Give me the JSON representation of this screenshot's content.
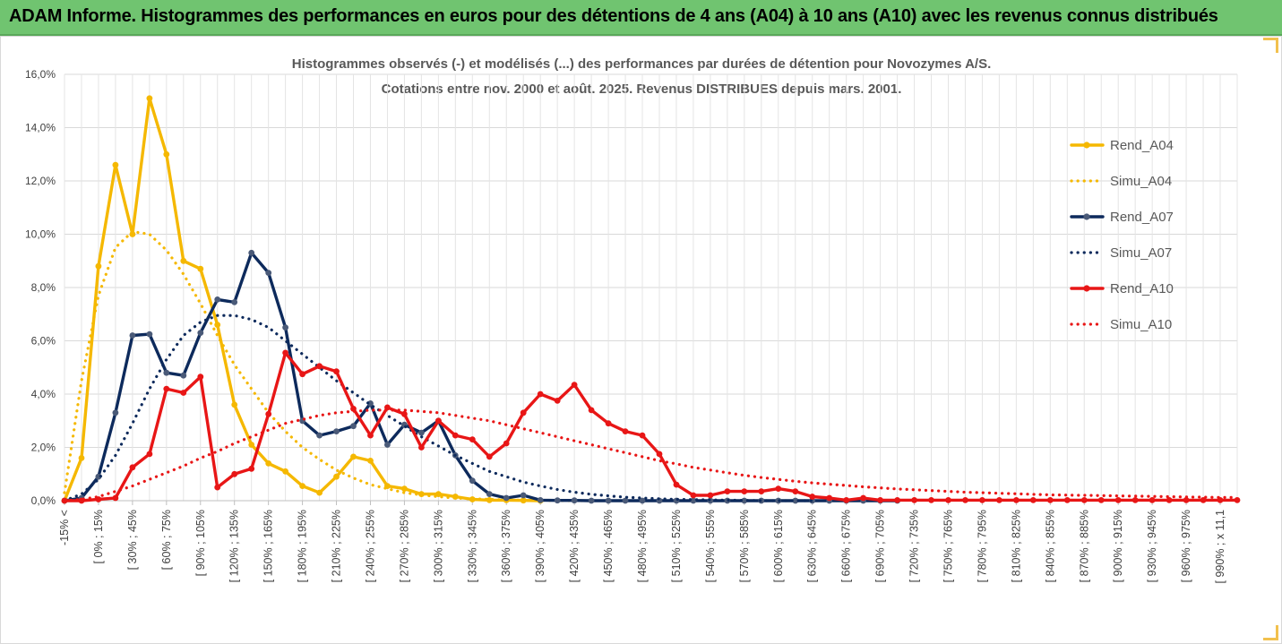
{
  "header": {
    "title": "ADAM Informe. Histogrammes des performances en euros pour des détentions de 4 ans (A04) à 10 ans (A10) avec les revenus connus distribués"
  },
  "chart_data": {
    "type": "line",
    "title": "Histogrammes observés (-) et modélisés (...) des performances par durées de détention pour Novozymes A/S.",
    "subtitle": "Cotations entre nov. 2000 et août. 2025. Revenus DISTRIBUES depuis mars. 2001.",
    "xlabel": "",
    "ylabel": "",
    "ylim": [
      0,
      16
    ],
    "y_ticks": [
      "0,0%",
      "2,0%",
      "4,0%",
      "6,0%",
      "8,0%",
      "10,0%",
      "12,0%",
      "14,0%",
      "16,0%"
    ],
    "grid": true,
    "legend_position": "right",
    "x_tick_labels": [
      "-15% <",
      "[ 0% ; 15%",
      "[ 30% ; 45%",
      "[ 60% ; 75%",
      "[ 90% ; 105%",
      "[ 120% ; 135%",
      "[ 150% ; 165%",
      "[ 180% ; 195%",
      "[ 210% ; 225%",
      "[ 240% ; 255%",
      "[ 270% ; 285%",
      "[ 300% ; 315%",
      "[ 330% ; 345%",
      "[ 360% ; 375%",
      "[ 390% ; 405%",
      "[ 420% ; 435%",
      "[ 450% ; 465%",
      "[ 480% ; 495%",
      "[ 510% ; 525%",
      "[ 540% ; 555%",
      "[ 570% ; 585%",
      "[ 600% ; 615%",
      "[ 630% ; 645%",
      "[ 660% ; 675%",
      "[ 690% ; 705%",
      "[ 720% ; 735%",
      "[ 750% ; 765%",
      "[ 780% ; 795%",
      "[ 810% ; 825%",
      "[ 840% ; 855%",
      "[ 870% ; 885%",
      "[ 900% ; 915%",
      "[ 930% ; 945%",
      "[ 960% ; 975%",
      "[ 990% ; x 11,1"
    ],
    "n_points": 70,
    "series": [
      {
        "name": "Rend_A04",
        "style": "solid",
        "color": "#f5b800",
        "values": [
          0,
          1.6,
          8.8,
          12.6,
          10.0,
          15.1,
          13.0,
          9.0,
          8.7,
          6.6,
          3.6,
          2.1,
          1.4,
          1.1,
          0.55,
          0.3,
          0.9,
          1.65,
          1.5,
          0.55,
          0.45,
          0.25,
          0.25,
          0.15,
          0.05,
          0.02,
          0.02,
          0.01,
          0
        ]
      },
      {
        "name": "Simu_A04",
        "style": "dotted",
        "color": "#f5b800",
        "values": [
          0.3,
          4.5,
          7.7,
          9.5,
          10.1,
          10.0,
          9.4,
          8.5,
          7.4,
          6.2,
          5.1,
          4.2,
          3.3,
          2.6,
          2.0,
          1.55,
          1.15,
          0.85,
          0.6,
          0.45,
          0.3,
          0.22,
          0.15,
          0.1,
          0.07,
          0.05,
          0.03,
          0.02,
          0.01,
          0.01,
          0,
          0
        ]
      },
      {
        "name": "Rend_A07",
        "style": "solid",
        "color": "#0d2a5c",
        "values": [
          0,
          0.1,
          0.9,
          3.3,
          6.2,
          6.25,
          4.8,
          4.7,
          6.3,
          7.55,
          7.45,
          9.3,
          8.55,
          6.5,
          3.0,
          2.45,
          2.6,
          2.8,
          3.65,
          2.1,
          2.85,
          2.55,
          3.0,
          1.7,
          0.75,
          0.25,
          0.1,
          0.2,
          0.02,
          0.01,
          0.01,
          0,
          0,
          0,
          0,
          0,
          0,
          0,
          0,
          0,
          0,
          0,
          0,
          0,
          0,
          0,
          0,
          0,
          0,
          0
        ]
      },
      {
        "name": "Simu_A07",
        "style": "dotted",
        "color": "#0d2a5c",
        "values": [
          0,
          0.25,
          0.8,
          1.7,
          2.9,
          4.2,
          5.3,
          6.2,
          6.7,
          6.95,
          6.95,
          6.8,
          6.5,
          6.0,
          5.5,
          5.0,
          4.5,
          4.05,
          3.6,
          3.2,
          2.8,
          2.4,
          2.05,
          1.7,
          1.4,
          1.1,
          0.9,
          0.7,
          0.55,
          0.42,
          0.32,
          0.24,
          0.18,
          0.13,
          0.1,
          0.07,
          0.05,
          0.04,
          0.03,
          0.02,
          0.01,
          0,
          0,
          0,
          0
        ]
      },
      {
        "name": "Rend_A10",
        "style": "solid",
        "color": "#e81616",
        "values": [
          0,
          0,
          0.05,
          0.1,
          1.25,
          1.75,
          4.2,
          4.05,
          4.65,
          0.5,
          1.0,
          1.2,
          3.25,
          5.55,
          4.75,
          5.05,
          4.85,
          3.45,
          2.45,
          3.5,
          3.25,
          2.0,
          3.0,
          2.45,
          2.3,
          1.65,
          2.15,
          3.3,
          4.0,
          3.75,
          4.35,
          3.4,
          2.9,
          2.6,
          2.45,
          1.75,
          0.6,
          0.2,
          0.2,
          0.35,
          0.35,
          0.35,
          0.45,
          0.35,
          0.15,
          0.1,
          0.02,
          0.1,
          0.02,
          0.02,
          0.02,
          0.02,
          0.02,
          0.02,
          0.02,
          0.02,
          0.02,
          0.02,
          0.02,
          0.02,
          0.02,
          0.02,
          0.02,
          0.02,
          0.02,
          0.02,
          0.02,
          0.02,
          0.02,
          0.02
        ]
      },
      {
        "name": "Simu_A10",
        "style": "dotted",
        "color": "#e81616",
        "values": [
          0,
          0.05,
          0.15,
          0.35,
          0.55,
          0.8,
          1.05,
          1.3,
          1.6,
          1.85,
          2.15,
          2.4,
          2.65,
          2.9,
          3.05,
          3.2,
          3.3,
          3.35,
          3.4,
          3.4,
          3.4,
          3.35,
          3.3,
          3.2,
          3.1,
          3.0,
          2.85,
          2.7,
          2.55,
          2.4,
          2.25,
          2.1,
          1.95,
          1.8,
          1.65,
          1.5,
          1.38,
          1.25,
          1.15,
          1.05,
          0.95,
          0.87,
          0.8,
          0.73,
          0.67,
          0.62,
          0.57,
          0.52,
          0.48,
          0.44,
          0.41,
          0.38,
          0.35,
          0.32,
          0.3,
          0.28,
          0.26,
          0.24,
          0.22,
          0.21,
          0.2,
          0.19,
          0.18,
          0.17,
          0.16,
          0.15,
          0.14,
          0.13,
          0.12,
          0.12
        ]
      }
    ]
  }
}
